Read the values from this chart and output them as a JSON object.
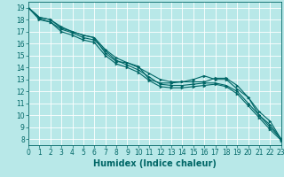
{
  "title": "",
  "xlabel": "Humidex (Indice chaleur)",
  "ylabel": "",
  "xlim": [
    0,
    23
  ],
  "ylim": [
    7.5,
    19.5
  ],
  "xticks": [
    0,
    1,
    2,
    3,
    4,
    5,
    6,
    7,
    8,
    9,
    10,
    11,
    12,
    13,
    14,
    15,
    16,
    17,
    18,
    19,
    20,
    21,
    22,
    23
  ],
  "yticks": [
    8,
    9,
    10,
    11,
    12,
    13,
    14,
    15,
    16,
    17,
    18,
    19
  ],
  "background_color": "#b8e8e8",
  "grid_color": "#ffffff",
  "line_color": "#006666",
  "series": [
    [
      19.0,
      18.2,
      18.0,
      17.4,
      17.0,
      16.7,
      16.5,
      15.2,
      14.5,
      14.4,
      14.1,
      13.0,
      12.7,
      12.7,
      12.8,
      13.0,
      13.3,
      13.0,
      13.0,
      12.2,
      11.5,
      10.0,
      9.0,
      8.0
    ],
    [
      19.0,
      18.2,
      18.0,
      17.3,
      17.0,
      16.7,
      16.5,
      15.5,
      14.8,
      14.4,
      14.0,
      13.5,
      13.0,
      12.8,
      12.8,
      12.8,
      12.8,
      13.1,
      13.1,
      12.5,
      11.5,
      10.3,
      9.5,
      8.0
    ],
    [
      19.0,
      18.1,
      17.8,
      17.2,
      16.9,
      16.5,
      16.3,
      15.4,
      14.6,
      14.2,
      13.8,
      13.2,
      12.6,
      12.5,
      12.5,
      12.6,
      12.7,
      12.7,
      12.5,
      12.0,
      11.0,
      10.0,
      9.2,
      8.0
    ],
    [
      19.0,
      18.0,
      17.8,
      17.0,
      16.7,
      16.3,
      16.1,
      15.0,
      14.3,
      14.0,
      13.6,
      12.9,
      12.4,
      12.3,
      12.3,
      12.4,
      12.5,
      12.6,
      12.4,
      11.8,
      10.8,
      9.8,
      8.8,
      7.9
    ]
  ],
  "tick_fontsize": 5.5,
  "xlabel_fontsize": 7.0,
  "linewidth": 0.8,
  "markersize": 2.2
}
